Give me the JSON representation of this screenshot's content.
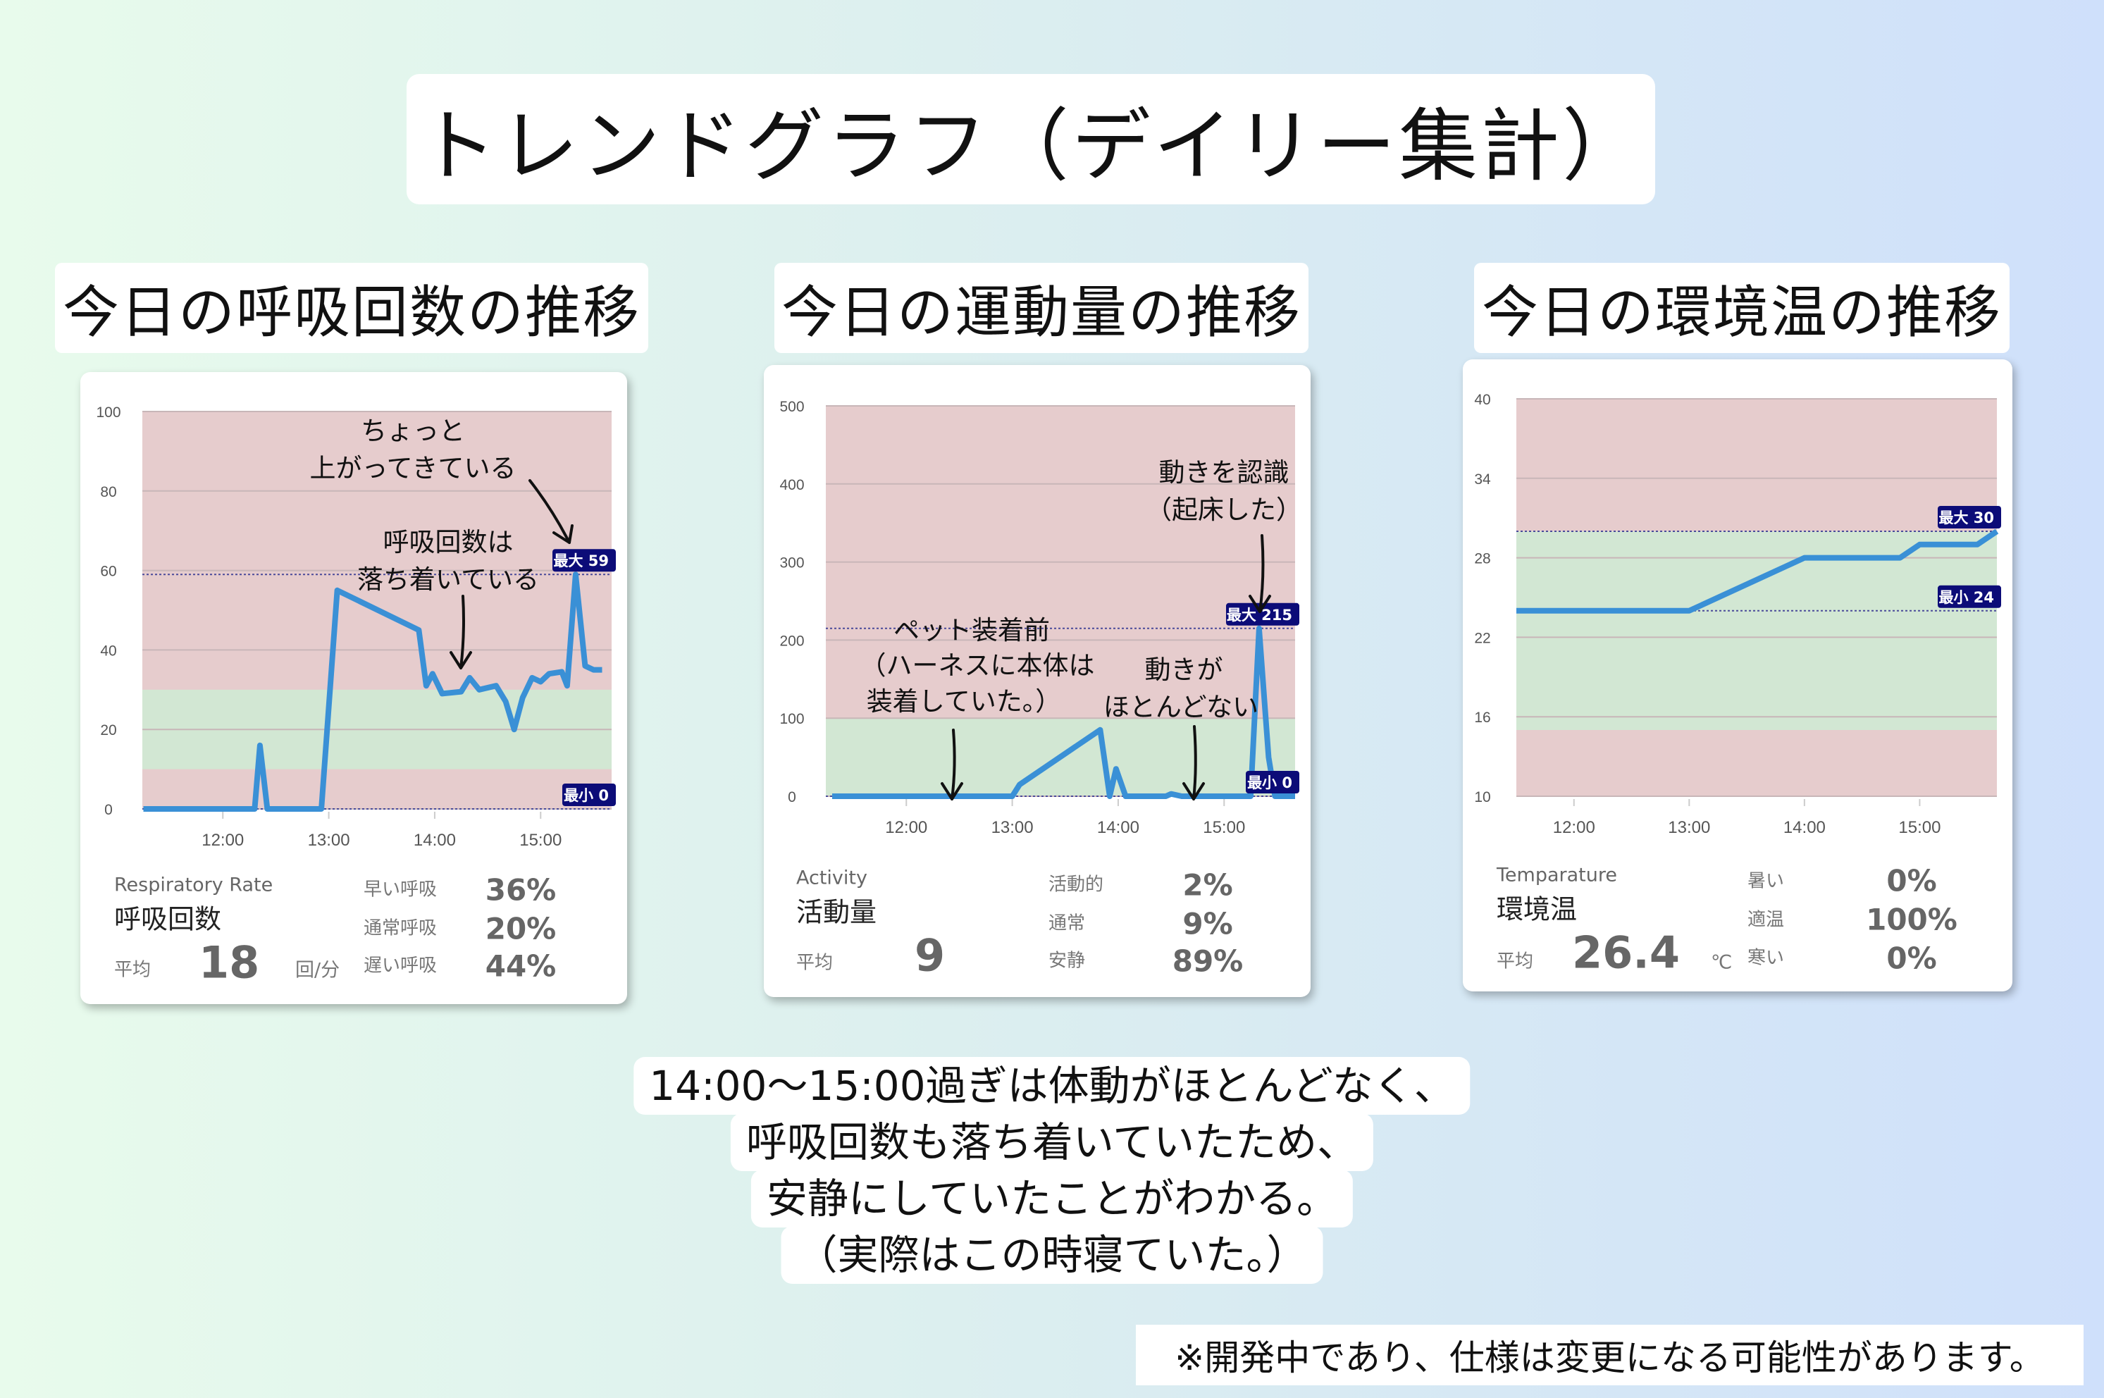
{
  "title": "トレンドグラフ（デイリー集計）",
  "headings": [
    "今日の呼吸回数の推移",
    "今日の運動量の推移",
    "今日の環境温の推移"
  ],
  "colors": {
    "line": "#3a90d6",
    "danger_band": "#e6cccd",
    "normal_band": "#d2e7d3",
    "badge": "#0c0c78"
  },
  "cards": [
    {
      "label_en": "Respiratory Rate",
      "label_jp": "呼吸回数",
      "avg_label": "平均",
      "avg_value": "18",
      "unit": "回/分",
      "stats": [
        {
          "label": "早い呼吸",
          "value": "36%"
        },
        {
          "label": "通常呼吸",
          "value": "20%"
        },
        {
          "label": "遅い呼吸",
          "value": "44%"
        }
      ],
      "annotations": [
        "ちょっと",
        "上がってきている",
        "呼吸回数は",
        "落ち着いている"
      ]
    },
    {
      "label_en": "Activity",
      "label_jp": "活動量",
      "avg_label": "平均",
      "avg_value": "9",
      "unit": "",
      "stats": [
        {
          "label": "活動的",
          "value": "2%"
        },
        {
          "label": "通常",
          "value": "9%"
        },
        {
          "label": "安静",
          "value": "89%"
        }
      ],
      "annotations": [
        "動きを認識",
        "（起床した）",
        "ペット装着前",
        "（ハーネスに本体は",
        "装着していた。）",
        "動きが",
        "ほとんどない"
      ]
    },
    {
      "label_en": "Temparature",
      "label_jp": "環境温",
      "avg_label": "平均",
      "avg_value": "26.4",
      "unit": "℃",
      "stats": [
        {
          "label": "暑い",
          "value": "0%"
        },
        {
          "label": "適温",
          "value": "100%"
        },
        {
          "label": "寒い",
          "value": "0%"
        }
      ],
      "annotations": []
    }
  ],
  "summary": [
    "14:00〜15:00過ぎは体動がほとんどなく、",
    "呼吸回数も落ち着いていたため、",
    "安静にしていたことがわかる。",
    "（実際はこの時寝ていた。）"
  ],
  "footnote": "※開発中であり、仕様は変更になる可能性があります。",
  "chart_data": [
    {
      "type": "line",
      "title": "今日の呼吸回数の推移",
      "xlabel": "",
      "ylabel": "",
      "xlim": [
        11.24,
        15.67
      ],
      "ylim": [
        0,
        100
      ],
      "yticks": [
        0,
        20,
        40,
        60,
        80,
        100
      ],
      "xticks": [
        {
          "x": 12,
          "label": "12:00"
        },
        {
          "x": 13,
          "label": "13:00"
        },
        {
          "x": 14,
          "label": "14:00"
        },
        {
          "x": 15,
          "label": "15:00"
        }
      ],
      "normal_band": [
        10,
        30
      ],
      "max": {
        "label": "最大 59",
        "value": 59
      },
      "min": {
        "label": "最小 0",
        "value": 0
      },
      "x": [
        11.25,
        12.3,
        12.35,
        12.42,
        12.93,
        13.08,
        13.85,
        13.92,
        13.98,
        14.07,
        14.25,
        14.33,
        14.42,
        14.58,
        14.67,
        14.75,
        14.83,
        14.92,
        15.0,
        15.08,
        15.2,
        15.25,
        15.33,
        15.42,
        15.5,
        15.58
      ],
      "y": [
        0,
        0,
        16,
        0,
        0,
        55,
        45,
        31,
        34,
        29,
        29.5,
        33,
        30,
        31,
        27,
        20,
        28,
        33,
        32,
        34,
        34.5,
        31,
        59,
        36,
        35,
        35
      ]
    },
    {
      "type": "line",
      "title": "今日の運動量の推移",
      "xlabel": "",
      "ylabel": "",
      "xlim": [
        11.24,
        15.67
      ],
      "ylim": [
        0,
        500
      ],
      "yticks": [
        0,
        100,
        200,
        300,
        400,
        500
      ],
      "xticks": [
        {
          "x": 12,
          "label": "12:00"
        },
        {
          "x": 13,
          "label": "13:00"
        },
        {
          "x": 14,
          "label": "14:00"
        },
        {
          "x": 15,
          "label": "15:00"
        }
      ],
      "normal_band": [
        0,
        100
      ],
      "max": {
        "label": "最大 215",
        "value": 215
      },
      "min": {
        "label": "最小 0",
        "value": 0
      },
      "x": [
        11.3,
        13.0,
        13.07,
        13.83,
        13.92,
        13.98,
        14.07,
        14.45,
        14.5,
        14.6,
        15.25,
        15.33,
        15.42,
        15.48,
        15.67
      ],
      "y": [
        0,
        0,
        15,
        85,
        0,
        35,
        0,
        0,
        3,
        0,
        0,
        215,
        50,
        0,
        0
      ]
    },
    {
      "type": "line",
      "title": "今日の環境温の推移",
      "xlabel": "",
      "ylabel": "",
      "xlim": [
        11.5,
        15.67
      ],
      "ylim": [
        10,
        40
      ],
      "yticks": [
        10,
        16,
        22,
        28,
        34,
        40
      ],
      "xticks": [
        {
          "x": 12,
          "label": "12:00"
        },
        {
          "x": 13,
          "label": "13:00"
        },
        {
          "x": 14,
          "label": "14:00"
        },
        {
          "x": 15,
          "label": "15:00"
        }
      ],
      "normal_band": [
        15,
        30
      ],
      "max": {
        "label": "最大 30",
        "value": 30
      },
      "min": {
        "label": "最小 24",
        "value": 24
      },
      "x": [
        11.5,
        13.0,
        14.0,
        14.83,
        15.0,
        15.5,
        15.67
      ],
      "y": [
        24,
        24,
        28,
        28,
        29,
        29,
        30
      ]
    }
  ]
}
